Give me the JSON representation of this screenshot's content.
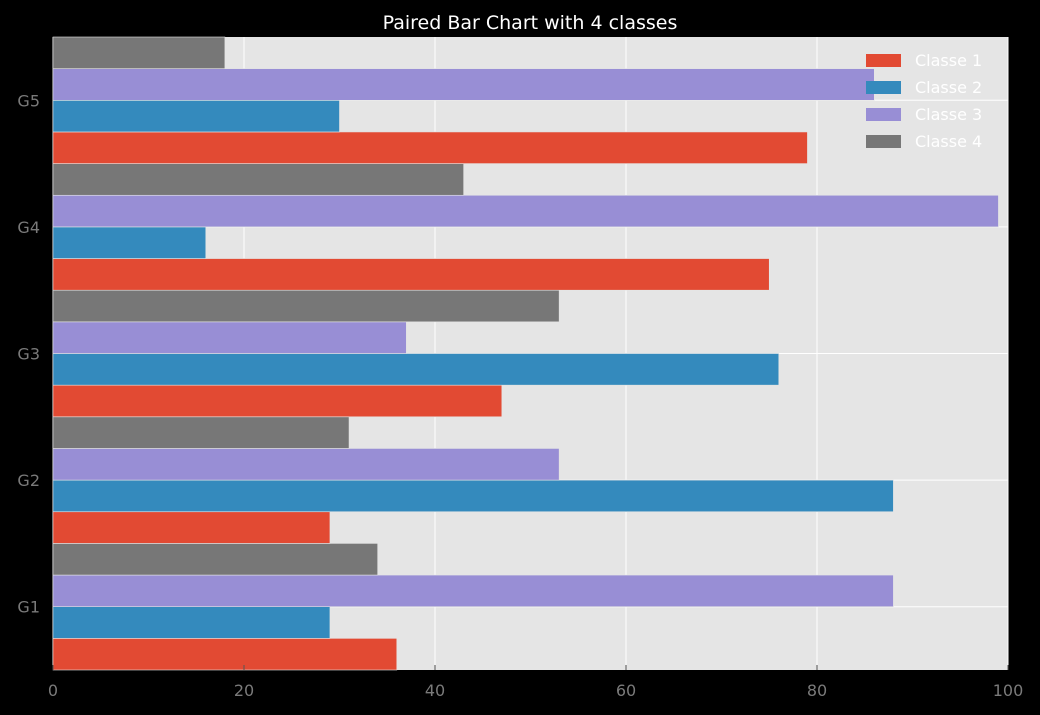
{
  "chart_data": {
    "type": "bar",
    "orientation": "horizontal",
    "title": "Paired Bar Chart with 4 classes",
    "xlabel": "",
    "ylabel": "",
    "categories": [
      "G1",
      "G2",
      "G3",
      "G4",
      "G5"
    ],
    "series": [
      {
        "name": "Classe 1",
        "color": "#E24A33",
        "values": [
          36,
          29,
          47,
          75,
          79
        ]
      },
      {
        "name": "Classe 2",
        "color": "#348ABD",
        "values": [
          29,
          88,
          76,
          16,
          30
        ]
      },
      {
        "name": "Classe 3",
        "color": "#988ED5",
        "values": [
          88,
          53,
          37,
          99,
          86
        ]
      },
      {
        "name": "Classe 4",
        "color": "#777777",
        "values": [
          34,
          31,
          53,
          43,
          18
        ]
      }
    ],
    "xlim": [
      0,
      100
    ],
    "xticks": [
      0,
      20,
      40,
      60,
      80,
      100
    ],
    "grid": true,
    "legend_position": "top-right",
    "plot_background": "#E5E5E5",
    "figure_background": "#000000"
  }
}
